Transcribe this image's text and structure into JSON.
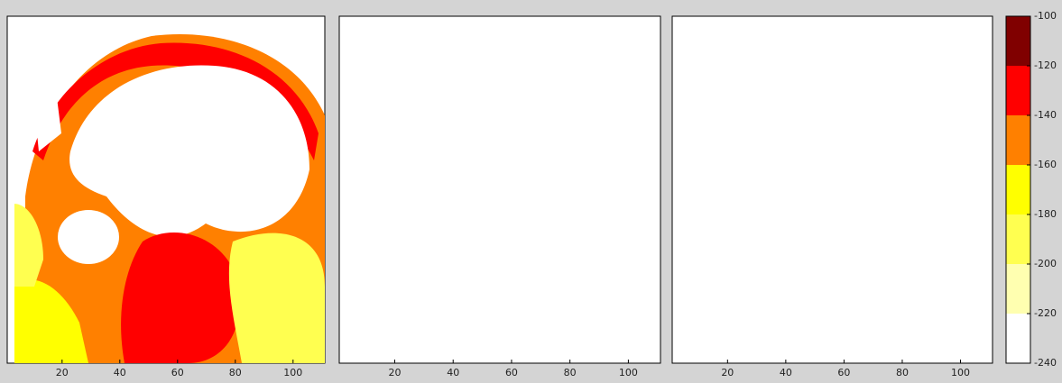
{
  "chart_data": [
    {
      "type": "heatmap",
      "xlim": [
        1,
        111
      ],
      "xticks": [
        20,
        40,
        60,
        80,
        100
      ]
    },
    {
      "type": "heatmap",
      "xlim": [
        1,
        111
      ],
      "xticks": [
        20,
        40,
        60,
        80,
        100
      ]
    },
    {
      "type": "heatmap",
      "xlim": [
        1,
        111
      ],
      "xticks": [
        20,
        40,
        60,
        80,
        100
      ]
    }
  ],
  "colorbar": {
    "lim": [
      -240,
      -100
    ],
    "ticks": [
      -100,
      -120,
      -140,
      -160,
      -180,
      -200,
      -220,
      -240
    ],
    "colors": [
      "#800000",
      "#ff0000",
      "#ff8000",
      "#ffff00",
      "#ffff50",
      "#ffffb0",
      "#ffffff"
    ]
  }
}
